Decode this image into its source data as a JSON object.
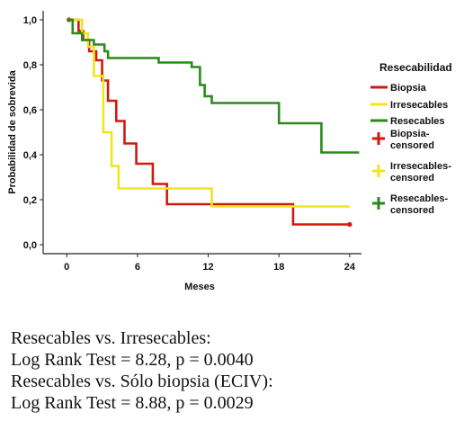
{
  "chart_data": {
    "type": "line",
    "subtype": "kaplan-meier",
    "xlabel": "Meses",
    "ylabel": "Probabilidad de sobrevida",
    "xlim": [
      -2,
      25
    ],
    "ylim": [
      -0.04,
      1.04
    ],
    "x_ticks": [
      0,
      6,
      12,
      18,
      24
    ],
    "x_tick_labels": [
      "0",
      "6",
      "12",
      "18",
      "24"
    ],
    "y_ticks": [
      0,
      0.2,
      0.4,
      0.6,
      0.8,
      1.0
    ],
    "y_tick_labels": [
      "0,0",
      "0,2",
      "0,4",
      "0,6",
      "0,8",
      "1,0"
    ],
    "grid": false,
    "legend_placement": "right",
    "legend_title": "Resecabilidad",
    "series": [
      {
        "name": "Biopsia",
        "color": "#d11a0d",
        "steps": [
          [
            0,
            1.0
          ],
          [
            1.0,
            0.95
          ],
          [
            1.4,
            0.91
          ],
          [
            1.9,
            0.86
          ],
          [
            2.5,
            0.82
          ],
          [
            3.0,
            0.73
          ],
          [
            3.5,
            0.64
          ],
          [
            4.2,
            0.55
          ],
          [
            4.9,
            0.45
          ],
          [
            5.9,
            0.36
          ],
          [
            7.3,
            0.27
          ],
          [
            8.5,
            0.18
          ],
          [
            19.2,
            0.09
          ],
          [
            24.0,
            0.09
          ]
        ],
        "censored": [
          [
            0.2,
            1.0
          ],
          [
            24.0,
            0.09
          ]
        ]
      },
      {
        "name": "Irresecables",
        "color": "#f2e51e",
        "steps": [
          [
            0,
            1.0
          ],
          [
            1.3,
            0.94
          ],
          [
            1.8,
            0.88
          ],
          [
            2.3,
            0.75
          ],
          [
            3.1,
            0.5
          ],
          [
            3.8,
            0.35
          ],
          [
            4.4,
            0.25
          ],
          [
            12.3,
            0.17
          ],
          [
            24.0,
            0.17
          ]
        ],
        "censored": []
      },
      {
        "name": "Resecables",
        "color": "#2a8a1c",
        "steps": [
          [
            0,
            1.0
          ],
          [
            0.5,
            0.94
          ],
          [
            1.3,
            0.91
          ],
          [
            2.3,
            0.89
          ],
          [
            3.2,
            0.86
          ],
          [
            3.5,
            0.83
          ],
          [
            7.4,
            0.83
          ],
          [
            7.8,
            0.81
          ],
          [
            10.6,
            0.79
          ],
          [
            11.3,
            0.71
          ],
          [
            11.7,
            0.66
          ],
          [
            12.3,
            0.63
          ],
          [
            18.0,
            0.54
          ],
          [
            21.6,
            0.41
          ],
          [
            24.8,
            0.41
          ]
        ],
        "censored": []
      }
    ],
    "legend_entries": [
      {
        "label": "Biopsia",
        "marker": "line",
        "color": "#d11a0d"
      },
      {
        "label": "Irresecables",
        "marker": "line",
        "color": "#f2e51e"
      },
      {
        "label": "Resecables",
        "marker": "line",
        "color": "#2a8a1c"
      },
      {
        "label": "Biopsia-\ncensored",
        "marker": "cross",
        "color": "#d11a0d"
      },
      {
        "label": "Irresecables-\ncensored",
        "marker": "cross",
        "color": "#f2e51e"
      },
      {
        "label": "Resecables-\ncensored",
        "marker": "cross",
        "color": "#2a8a1c"
      }
    ]
  },
  "stats": {
    "line1": "Resecables vs. Irresecables:",
    "line2": "Log Rank Test = 8.28, p = 0.0040",
    "line3": "Resecables vs. Sólo biopsia (ECIV):",
    "line4": "Log Rank Test = 8.88, p = 0.0029"
  }
}
